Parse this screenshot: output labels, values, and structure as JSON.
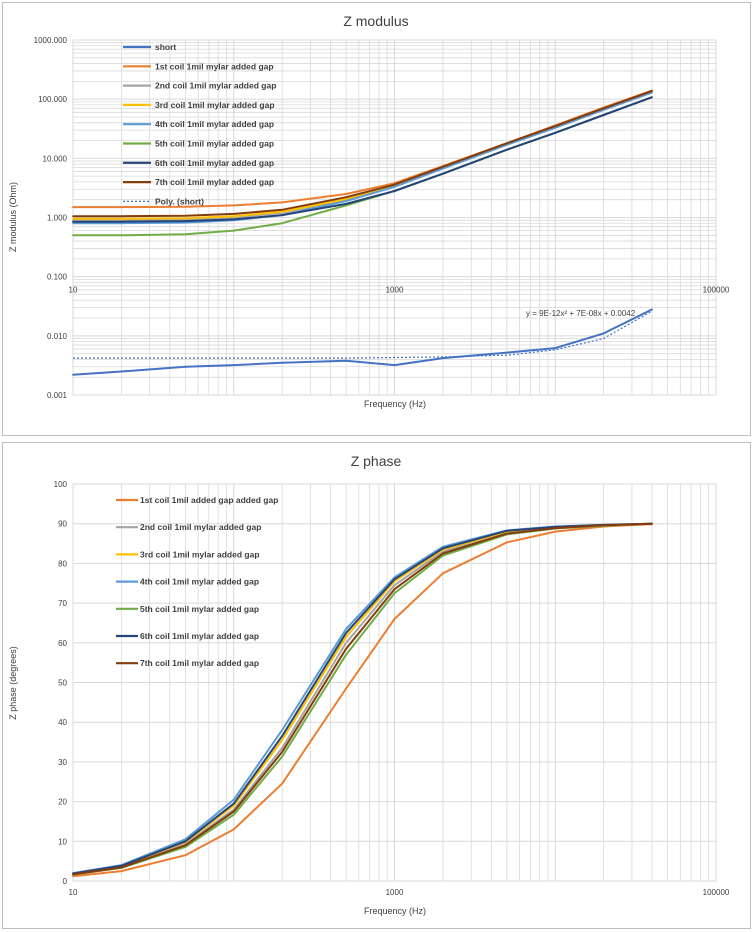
{
  "charts": [
    {
      "id": "zmod",
      "title": "Z modulus",
      "xlabel": "Frequency (Hz)",
      "ylabel": "Z modulus (Ohm)",
      "x_ticks": [
        "10",
        "1000",
        "100000"
      ],
      "y_ticks": [
        "0.001",
        "0.010",
        "0.100",
        "1.000",
        "10.000",
        "100.000",
        "1000.000"
      ],
      "equation": "y = 9E-12x² + 7E-08x + 0.0042"
    },
    {
      "id": "zphase",
      "title": "Z phase",
      "xlabel": "Frequency (Hz)",
      "ylabel": "Z phase (degrees)",
      "x_ticks": [
        "10",
        "1000",
        "100000"
      ],
      "y_ticks": [
        "0",
        "10",
        "20",
        "30",
        "40",
        "50",
        "60",
        "70",
        "80",
        "90",
        "100"
      ]
    }
  ],
  "chart_data": [
    {
      "type": "line",
      "title": "Z modulus",
      "xlabel": "Frequency (Hz)",
      "ylabel": "Z modulus (Ohm)",
      "x_scale": "log",
      "y_scale": "log",
      "xlim": [
        10,
        100000
      ],
      "ylim": [
        0.001,
        1000
      ],
      "grid": true,
      "legend": "top-left",
      "x": [
        10,
        20,
        50,
        100,
        200,
        500,
        1000,
        2000,
        5000,
        10000,
        20000,
        40000
      ],
      "series": [
        {
          "name": "short",
          "color": "#4472c4",
          "values": [
            0.0022,
            0.0025,
            0.003,
            0.0032,
            0.0035,
            0.0038,
            0.0032,
            0.0042,
            0.0052,
            0.0062,
            0.011,
            0.028
          ]
        },
        {
          "name": "1st coil 1mil mylar added gap",
          "color": "#ed7d31",
          "values": [
            1.5,
            1.5,
            1.52,
            1.6,
            1.8,
            2.5,
            3.8,
            7.4,
            18,
            36,
            72,
            140
          ]
        },
        {
          "name": "2nd coil 1mil mylar added gap",
          "color": "#a5a5a5",
          "values": [
            0.9,
            0.9,
            0.92,
            1.0,
            1.2,
            2.0,
            3.4,
            6.8,
            17,
            33,
            66,
            130
          ]
        },
        {
          "name": "3rd coil 1mil mylar added gap",
          "color": "#ffc000",
          "values": [
            0.95,
            0.95,
            0.97,
            1.05,
            1.25,
            2.05,
            3.5,
            6.9,
            17,
            34,
            67,
            132
          ]
        },
        {
          "name": "4th coil 1mil mylar added gap",
          "color": "#5b9bd5",
          "values": [
            0.8,
            0.8,
            0.82,
            0.9,
            1.1,
            1.9,
            3.3,
            6.7,
            17,
            33,
            66,
            130
          ]
        },
        {
          "name": "5th coil 1mil mylar added gap",
          "color": "#70ad47",
          "values": [
            0.5,
            0.5,
            0.52,
            0.6,
            0.8,
            1.6,
            2.8,
            5.5,
            14,
            27,
            54,
            108
          ]
        },
        {
          "name": "6th coil 1mil mylar added gap",
          "color": "#264478",
          "values": [
            0.85,
            0.85,
            0.87,
            0.93,
            1.1,
            1.7,
            2.8,
            5.5,
            14,
            27,
            54,
            108
          ]
        },
        {
          "name": "7th coil 1mil mylar added gap",
          "color": "#843c0c",
          "values": [
            1.05,
            1.05,
            1.07,
            1.15,
            1.35,
            2.2,
            3.6,
            7.2,
            18,
            35,
            70,
            138
          ]
        },
        {
          "name": "Poly. (short)",
          "color": "#4472c4",
          "dashed": true,
          "values": [
            0.0042,
            0.0042,
            0.0042,
            0.0042,
            0.0042,
            0.0042,
            0.0043,
            0.0044,
            0.0047,
            0.0058,
            0.009,
            0.0262
          ]
        }
      ],
      "annotations": [
        "y = 9E-12x² + 7E-08x + 0.0042"
      ]
    },
    {
      "type": "line",
      "title": "Z phase",
      "xlabel": "Frequency (Hz)",
      "ylabel": "Z phase (degrees)",
      "x_scale": "log",
      "xlim": [
        10,
        100000
      ],
      "ylim": [
        0,
        100
      ],
      "grid": true,
      "legend": "top-left",
      "x": [
        10,
        20,
        50,
        100,
        200,
        500,
        1000,
        2000,
        5000,
        10000,
        20000,
        40000
      ],
      "series": [
        {
          "name": "1st coil 1mil added gap added gap",
          "color": "#ed7d31",
          "values": [
            1.2,
            2.5,
            6.5,
            13,
            24.5,
            48.5,
            66,
            77.5,
            85.3,
            88,
            89.3,
            89.9
          ]
        },
        {
          "name": "2nd coil 1mil mylar added gap",
          "color": "#a5a5a5",
          "values": [
            1.7,
            3.5,
            9.3,
            18,
            33.5,
            60,
            74.5,
            83,
            87.7,
            89,
            89.6,
            90
          ]
        },
        {
          "name": "3rd coil 1mil mylar added gap",
          "color": "#ffc000",
          "values": [
            1.8,
            3.7,
            9.8,
            19,
            35.5,
            61.5,
            75.5,
            83.5,
            88,
            89.2,
            89.7,
            90
          ]
        },
        {
          "name": "4th coil 1mil mylar added gap",
          "color": "#5b9bd5",
          "values": [
            2.0,
            4.0,
            10.5,
            20.5,
            38,
            63.5,
            76.5,
            84.2,
            88.3,
            89.3,
            89.7,
            90
          ]
        },
        {
          "name": "5th coil 1mil mylar added gap",
          "color": "#70ad47",
          "values": [
            1.6,
            3.3,
            8.6,
            16.7,
            31.3,
            57,
            72.5,
            82,
            87.3,
            88.8,
            89.5,
            90
          ]
        },
        {
          "name": "6th coil 1mil mylar added gap",
          "color": "#264478",
          "values": [
            1.9,
            3.8,
            10,
            19.5,
            36.5,
            62.5,
            76,
            83.8,
            88.2,
            89.2,
            89.7,
            90
          ]
        },
        {
          "name": "7th coil 1mil mylar added gap",
          "color": "#843c0c",
          "values": [
            1.65,
            3.4,
            9,
            17.5,
            32.5,
            58.5,
            73.5,
            82.5,
            87.5,
            88.9,
            89.6,
            90
          ]
        }
      ]
    }
  ]
}
